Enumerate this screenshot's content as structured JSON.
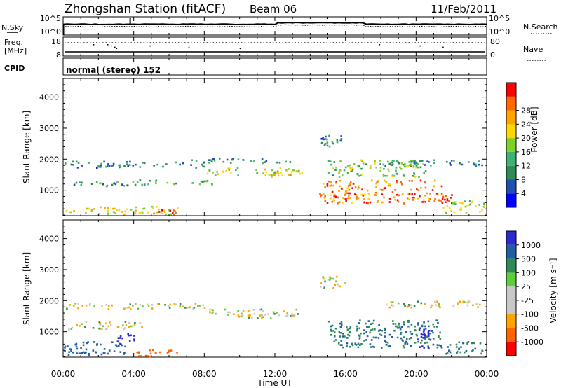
{
  "header": {
    "station": "Zhongshan Station (fitACF)",
    "beam": "Beam 06",
    "date": "11/Feb/2011"
  },
  "meta_panels": {
    "nsky_label": "N.Sky",
    "nsearch_label": "N.Search",
    "nsky_ticks": [
      "10^5",
      "10^0"
    ],
    "freq_label": "Freq.",
    "freq_unit": "[MHz]",
    "freq_ticks": [
      "18",
      "8"
    ],
    "nave_label": "Nave",
    "nave_ticks": [
      "80",
      "0"
    ],
    "cpid_label": "CPID",
    "cpid_text": "normal (stereo) 152"
  },
  "colors": {
    "power_scale": [
      "#0000ff",
      "#1f4fb0",
      "#2e8b57",
      "#3cb371",
      "#7fd02a",
      "#ffd700",
      "#ffa500",
      "#ff6a00",
      "#ff0000"
    ],
    "velocity_scale": [
      "#2a2ad0",
      "#2060a0",
      "#2e8b57",
      "#5ccd3c",
      "#c8c8c8",
      "#c8c8c8",
      "#ffa500",
      "#ff6400",
      "#ff0000"
    ]
  },
  "chart_data": [
    {
      "type": "heatmap",
      "panel": "power",
      "ylabel": "Slant Range [km]",
      "xlim": [
        "00:00",
        "24:00"
      ],
      "ylim": [
        180,
        4600
      ],
      "y_ticks": [
        "1000",
        "2000",
        "3000",
        "4000"
      ],
      "colorbar": {
        "label": "Power [dB]",
        "ticks": [
          "4",
          "8",
          "12",
          "16",
          "20",
          "24",
          "28"
        ],
        "range": [
          0,
          30
        ]
      },
      "regions": [
        {
          "t": [
            0.0,
            8.0
          ],
          "r": [
            1750,
            1950
          ],
          "level": 8
        },
        {
          "t": [
            0.0,
            4.5
          ],
          "r": [
            1150,
            1300
          ],
          "level": 10
        },
        {
          "t": [
            0.0,
            6.5
          ],
          "r": [
            250,
            500
          ],
          "level": 18
        },
        {
          "t": [
            5.0,
            6.5
          ],
          "r": [
            250,
            400
          ],
          "level": 27
        },
        {
          "t": [
            4.0,
            8.5
          ],
          "r": [
            1200,
            1350
          ],
          "level": 12
        },
        {
          "t": [
            7.0,
            13.0
          ],
          "r": [
            1900,
            2050
          ],
          "level": 8
        },
        {
          "t": [
            8.0,
            13.5
          ],
          "r": [
            1500,
            1750
          ],
          "level": 16
        },
        {
          "t": [
            11.5,
            13.0
          ],
          "r": [
            1450,
            1600
          ],
          "level": 21
        },
        {
          "t": [
            14.5,
            16.0
          ],
          "r": [
            2400,
            2800
          ],
          "level": 8
        },
        {
          "t": [
            14.5,
            21.5
          ],
          "r": [
            600,
            1350
          ],
          "level": 24
        },
        {
          "t": [
            15.0,
            20.5
          ],
          "r": [
            1450,
            2000
          ],
          "level": 13
        },
        {
          "t": [
            18.0,
            24.0
          ],
          "r": [
            1800,
            2000
          ],
          "level": 8
        },
        {
          "t": [
            21.0,
            22.0
          ],
          "r": [
            600,
            900
          ],
          "level": 28
        },
        {
          "t": [
            21.5,
            24.0
          ],
          "r": [
            300,
            700
          ],
          "level": 16
        }
      ]
    },
    {
      "type": "heatmap",
      "panel": "velocity",
      "ylabel": "Slant Range [km]",
      "xlabel": "Time UT",
      "x_ticks": [
        "00:00",
        "04:00",
        "08:00",
        "12:00",
        "16:00",
        "20:00",
        "00:00"
      ],
      "xlim": [
        "00:00",
        "24:00"
      ],
      "ylim": [
        180,
        4600
      ],
      "y_ticks": [
        "1000",
        "2000",
        "3000",
        "4000"
      ],
      "colorbar": {
        "label": "Velocity [m s⁻¹]",
        "ticks": [
          "1000",
          "500",
          "100",
          "25",
          "-25",
          "-100",
          "-500",
          "-1000"
        ]
      },
      "regions": [
        {
          "t": [
            0.0,
            8.0
          ],
          "r": [
            1750,
            1950
          ],
          "level": 0
        },
        {
          "t": [
            0.0,
            4.5
          ],
          "r": [
            1100,
            1350
          ],
          "level": 0
        },
        {
          "t": [
            0.0,
            3.5
          ],
          "r": [
            250,
            700
          ],
          "level": 400
        },
        {
          "t": [
            3.0,
            4.0
          ],
          "r": [
            600,
            1000
          ],
          "level": 900
        },
        {
          "t": [
            4.0,
            6.5
          ],
          "r": [
            200,
            450
          ],
          "level": -300
        },
        {
          "t": [
            8.0,
            13.5
          ],
          "r": [
            1450,
            1750
          ],
          "level": 0
        },
        {
          "t": [
            14.5,
            16.0
          ],
          "r": [
            2400,
            2800
          ],
          "level": 0
        },
        {
          "t": [
            15.0,
            21.5
          ],
          "r": [
            500,
            1400
          ],
          "level": 300
        },
        {
          "t": [
            20.0,
            21.0
          ],
          "r": [
            500,
            1200
          ],
          "level": 800
        },
        {
          "t": [
            18.0,
            24.0
          ],
          "r": [
            1800,
            2000
          ],
          "level": 0
        },
        {
          "t": [
            21.5,
            24.0
          ],
          "r": [
            300,
            700
          ],
          "level": 300
        }
      ]
    }
  ]
}
